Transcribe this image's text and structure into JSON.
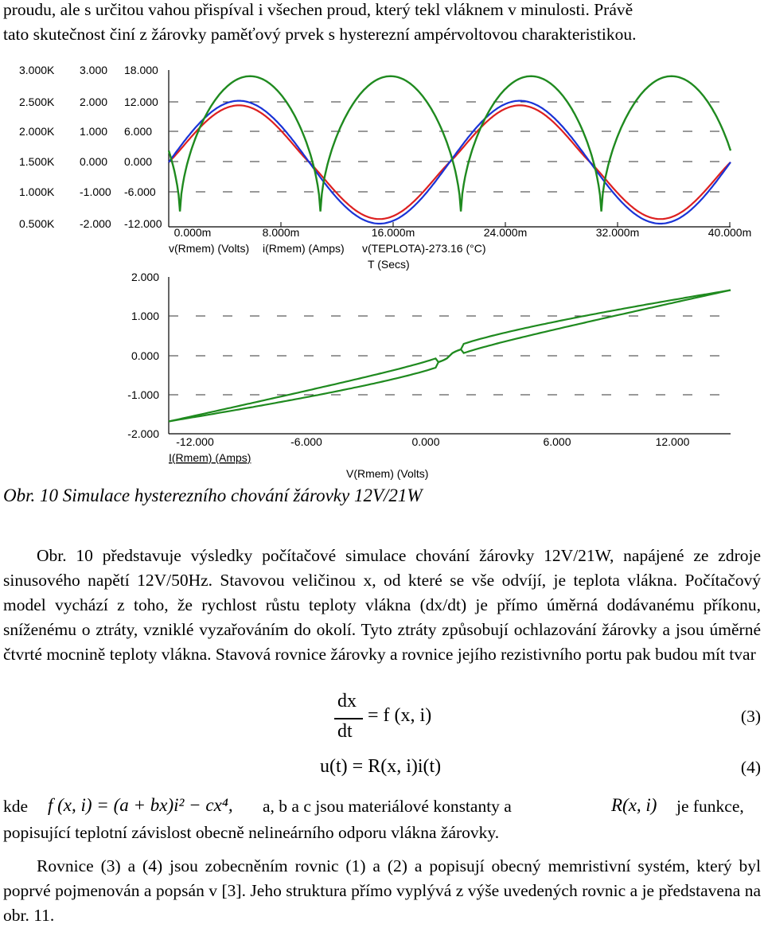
{
  "intro": {
    "line1": "proudu, ale s určitou vahou přispíval i všechen proud, který tekl vláknem v minulosti. Právě",
    "line2": "tato skutečnost činí z žárovky paměťový prvek s hysterezní ampérvoltovou charakteristikou."
  },
  "figure": {
    "caption": "Obr. 10 Simulace hysterezního chování žárovky 12V/21W",
    "colors": {
      "red": "#dd2020",
      "blue": "#1a33d6",
      "green": "#1f8a1f"
    },
    "top_chart": {
      "axis1_ticks": [
        "3.000K",
        "2.500K",
        "2.000K",
        "1.500K",
        "1.000K",
        "0.500K"
      ],
      "axis2_ticks": [
        "3.000",
        "2.000",
        "1.000",
        "0.000",
        "-1.000",
        "-2.000"
      ],
      "axis3_ticks": [
        "18.000",
        "12.000",
        "6.000",
        "0.000",
        "-6.000",
        "-12.000"
      ],
      "x_ticks": [
        "0.000m",
        "8.000m",
        "16.000m",
        "24.000m",
        "32.000m",
        "40.000m"
      ],
      "legend1": "v(Rmem) (Volts)",
      "legend2": "i(Rmem) (Amps)",
      "legend3": "v(TEPLOTA)-273.16 (°C)",
      "xlabel": "T (Secs)"
    },
    "bottom_chart": {
      "y_ticks": [
        "2.000",
        "1.000",
        "0.000",
        "-1.000",
        "-2.000"
      ],
      "x_ticks": [
        "-12.000",
        "-6.000",
        "0.000",
        "6.000",
        "12.000"
      ],
      "ylabel": "I(Rmem) (Amps)",
      "xlabel": "V(Rmem) (Volts)"
    }
  },
  "chart_data": [
    {
      "type": "line",
      "x_unit": "s",
      "xlim": [
        0,
        0.04
      ],
      "series": [
        {
          "name": "v(Rmem) (Volts)",
          "color": "blue",
          "axis": "axis3",
          "ylim": [
            -12,
            18
          ],
          "function": "12*sin(2*pi*50*t)"
        },
        {
          "name": "i(Rmem) (Amps)",
          "color": "red",
          "axis": "axis2",
          "ylim": [
            -2,
            3
          ],
          "amplitude": 1.85
        },
        {
          "name": "v(TEPLOTA)-273.16 (°C)",
          "color": "green",
          "axis": "axis1",
          "ylim": [
            500,
            3000
          ],
          "min": 640,
          "max": 2900
        }
      ]
    },
    {
      "type": "line",
      "xlim": [
        -12,
        12
      ],
      "ylim": [
        -2,
        2
      ],
      "series": [
        {
          "name": "I(Rmem) (Amps) vs V(Rmem) (Volts)",
          "color": "green",
          "shape": "pinched hysteresis loop"
        }
      ]
    }
  ],
  "body": {
    "para1": "Obr. 10 představuje výsledky počítačové simulace chování žárovky 12V/21W, napájené ze zdroje sinusového napětí 12V/50Hz. Stavovou veličinou x, od které se vše odvíjí, je teplota vlákna. Počítačový model vychází z toho, že rychlost růstu teploty vlákna (dx/dt) je přímo úměrná dodávanému příkonu, sníženému o ztráty, vzniklé vyzařováním do okolí. Tyto ztráty způsobují ochlazování žárovky a jsou úměrné čtvrté mocnině teploty vlákna. Stavová rovnice žárovky a rovnice jejího rezistivního portu pak budou mít tvar",
    "eq3_lhs_num": "dx",
    "eq3_lhs_den": "dt",
    "eq3_rhs": "= f (x, i)",
    "eq3_num": "(3)",
    "eq4": "u(t) = R(x, i)i(t)",
    "eq4_num": "(4)",
    "kde_line_a": "kde",
    "kde_formula": "f (x, i) = (a + bx)i² − cx⁴,",
    "kde_line_b": "a, b a c jsou materiálové konstanty a",
    "kde_formula2": "R(x, i)",
    "kde_line_c": "je funkce,",
    "kde_line2": "popisující teplotní závislost obecně nelineárního odporu vlákna žárovky.",
    "para2": "Rovnice (3) a (4) jsou zobecněním rovnic (1) a (2) a popisují obecný memristivní systém, který byl poprvé pojmenován a popsán v [3]. Jeho struktura přímo vyplývá z výše uvedených rovnic a je představena na obr. 11."
  }
}
